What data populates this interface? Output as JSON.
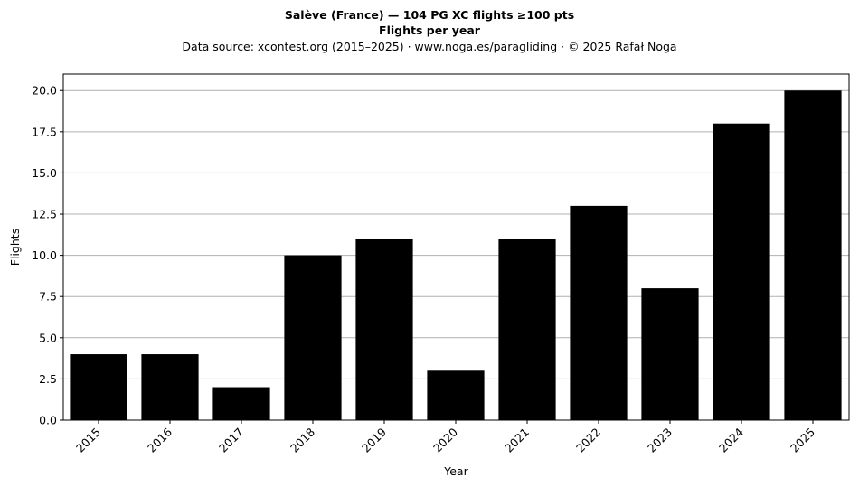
{
  "chart_data": {
    "type": "bar",
    "title": "Salève (France)  —  104 PG XC flights ≥100 pts",
    "subtitle": "Flights per year",
    "source_line": "Data source: xcontest.org (2015–2025)  ·  www.noga.es/paragliding  ·  © 2025 Rafał Noga",
    "xlabel": "Year",
    "ylabel": "Flights",
    "categories": [
      "2015",
      "2016",
      "2017",
      "2018",
      "2019",
      "2020",
      "2021",
      "2022",
      "2023",
      "2024",
      "2025"
    ],
    "values": [
      4,
      4,
      2,
      10,
      11,
      3,
      11,
      13,
      8,
      18,
      20
    ],
    "ylim": [
      0,
      21
    ],
    "yticks": [
      0,
      2.5,
      5,
      7.5,
      10,
      12.5,
      15,
      17.5,
      20
    ],
    "ytick_labels": [
      "0.0",
      "2.5",
      "5.0",
      "7.5",
      "10.0",
      "12.5",
      "15.0",
      "17.5",
      "20.0"
    ],
    "grid": "y-major",
    "bar_color": "#000000",
    "grid_color": "#b0b0b0",
    "legend": "none"
  }
}
